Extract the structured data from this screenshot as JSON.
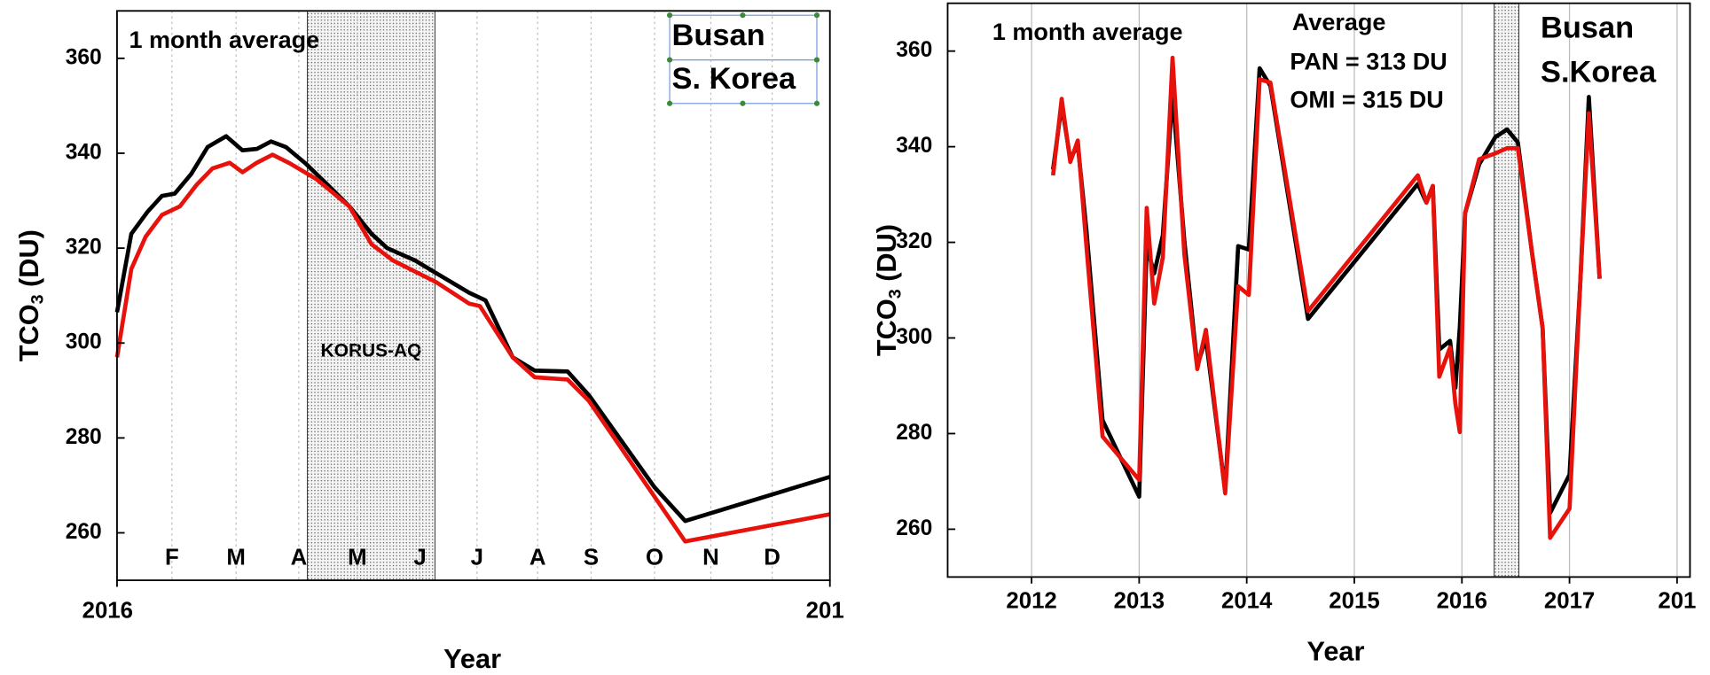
{
  "chart_data": [
    {
      "type": "line",
      "xlabel": "Year",
      "ylabel": [
        "TCO",
        "3",
        " (DU)"
      ],
      "xlim": [
        2016,
        2017
      ],
      "ylim": [
        250,
        370
      ],
      "xticks": [
        2016,
        {
          "value": 2017,
          "label": "201"
        }
      ],
      "yticks": [
        260,
        280,
        300,
        320,
        340,
        360
      ],
      "month_ticks": [
        {
          "value": 2016.077,
          "label": "F"
        },
        {
          "value": 2016.167,
          "label": "M"
        },
        {
          "value": 2016.255,
          "label": "A"
        },
        {
          "value": 2016.337,
          "label": "M"
        },
        {
          "value": 2016.425,
          "label": "J"
        },
        {
          "value": 2016.505,
          "label": "J"
        },
        {
          "value": 2016.59,
          "label": "A"
        },
        {
          "value": 2016.665,
          "label": "S"
        },
        {
          "value": 2016.754,
          "label": "O"
        },
        {
          "value": 2016.833,
          "label": "N"
        },
        {
          "value": 2016.919,
          "label": "D"
        }
      ],
      "grid": true,
      "shade": {
        "range": [
          2016.267,
          2016.446
        ],
        "label": "KORUS-AQ"
      },
      "annotations": [
        {
          "text": "1 month average",
          "color": "#000000"
        },
        {
          "text": "Busan",
          "color": "#000000"
        },
        {
          "text": "S. Korea",
          "color": "#000000"
        }
      ],
      "series": [
        {
          "color": "#000000",
          "x": [
            2016,
            2016.02,
            2016.043,
            2016.063,
            2016.081,
            2016.104,
            2016.127,
            2016.153,
            2016.176,
            2016.196,
            2016.216,
            2016.237,
            2016.264,
            2016.295,
            2016.326,
            2016.357,
            2016.379,
            2016.418,
            2016.448,
            2016.494,
            2016.517,
            2016.555,
            2016.586,
            2016.632,
            2016.662,
            2016.754,
            2016.797,
            2017
          ],
          "values": [
            306.5,
            323,
            327.7,
            331,
            331.5,
            335.6,
            341.3,
            343.6,
            340.6,
            340.9,
            342.5,
            341.3,
            337.9,
            333.4,
            328.8,
            323,
            320,
            317.4,
            314.7,
            310.6,
            309,
            297,
            294.2,
            294,
            289,
            269.6,
            262.5,
            271.8
          ]
        },
        {
          "color": "#e8120c",
          "x": [
            2016,
            2016.02,
            2016.04,
            2016.063,
            2016.088,
            2016.112,
            2016.134,
            2016.158,
            2016.176,
            2016.196,
            2016.218,
            2016.242,
            2016.28,
            2016.326,
            2016.357,
            2016.387,
            2016.448,
            2016.494,
            2016.509,
            2016.555,
            2016.586,
            2016.632,
            2016.662,
            2016.797,
            2017
          ],
          "values": [
            297,
            315.6,
            322.4,
            327,
            328.8,
            333.4,
            336.8,
            338,
            336,
            338,
            339.7,
            337.9,
            334.5,
            328.8,
            320.8,
            317.4,
            312.8,
            308.3,
            307.8,
            297,
            292.8,
            292.3,
            287.8,
            258.2,
            263.9
          ]
        }
      ]
    },
    {
      "type": "line",
      "xlabel": "Year",
      "ylabel": [
        "TCO",
        "3",
        " (DU)"
      ],
      "xlim": [
        2011.22,
        2018.12
      ],
      "ylim": [
        250,
        370
      ],
      "xticks": [
        2012,
        2013,
        2014,
        2015,
        2016,
        2017,
        {
          "value": 2018,
          "label": "201"
        }
      ],
      "yticks": [
        260,
        280,
        300,
        320,
        340,
        360
      ],
      "grid": true,
      "shade": {
        "range": [
          2016.3,
          2016.53
        ]
      },
      "annotations": [
        {
          "text": "1 month average",
          "color": "#000000"
        },
        {
          "text": "Average",
          "color": "#000000"
        },
        {
          "text": "PAN = 313 DU",
          "color": "#e8120c"
        },
        {
          "text": "OMI = 315 DU",
          "color": "#000000"
        },
        {
          "text": "Busan",
          "color": "#000000"
        },
        {
          "text": "S.Korea",
          "color": "#000000"
        }
      ],
      "series": [
        {
          "color": "#000000",
          "x": [
            2012.2,
            2012.28,
            2012.36,
            2012.43,
            2012.51,
            2012.66,
            2013.0,
            2013.07,
            2013.14,
            2013.22,
            2013.31,
            2013.42,
            2013.54,
            2013.62,
            2013.8,
            2013.92,
            2014.02,
            2014.12,
            2014.22,
            2014.57,
            2015.59,
            2015.67,
            2015.73,
            2015.79,
            2015.89,
            2015.94,
            2015.98,
            2016.03,
            2016.16,
            2016.31,
            2016.42,
            2016.52,
            2016.65,
            2016.75,
            2016.82,
            2017.0,
            2017.1,
            2017.18,
            2017.28
          ],
          "values": [
            335.2,
            348.8,
            337.4,
            340.4,
            322.6,
            282.8,
            266.8,
            319.2,
            313.5,
            321.5,
            351.1,
            320.4,
            294.2,
            299.9,
            268.0,
            319.2,
            318.5,
            356.4,
            352.7,
            304.0,
            332.2,
            328.3,
            331.8,
            297.6,
            299.4,
            289.6,
            302.1,
            326.1,
            336.3,
            342.0,
            343.6,
            340.9,
            318.1,
            302.1,
            263.4,
            271.4,
            311.3,
            350.4,
            312.4
          ]
        },
        {
          "color": "#e8120c",
          "x": [
            2012.2,
            2012.28,
            2012.36,
            2012.43,
            2012.51,
            2012.66,
            2013.0,
            2013.07,
            2013.14,
            2013.22,
            2013.31,
            2013.42,
            2013.54,
            2013.62,
            2013.8,
            2013.92,
            2014.02,
            2014.12,
            2014.22,
            2014.57,
            2015.59,
            2015.67,
            2015.73,
            2015.79,
            2015.89,
            2015.94,
            2015.98,
            2016.03,
            2016.16,
            2016.31,
            2016.42,
            2016.52,
            2016.65,
            2016.75,
            2016.82,
            2017.0,
            2017.1,
            2017.18,
            2017.28
          ],
          "values": [
            334.0,
            350.0,
            336.8,
            341.3,
            319.2,
            279.4,
            270.3,
            327.2,
            307.2,
            316.9,
            358.6,
            317.6,
            293.5,
            301.7,
            267.5,
            310.8,
            309.0,
            354.1,
            353.4,
            305.6,
            334.0,
            328.3,
            331.8,
            291.9,
            298.0,
            286.2,
            280.3,
            326.1,
            337.4,
            338.6,
            339.7,
            339.7,
            318.1,
            302.1,
            258.2,
            264.3,
            311.3,
            347.0,
            312.4
          ]
        }
      ]
    }
  ]
}
